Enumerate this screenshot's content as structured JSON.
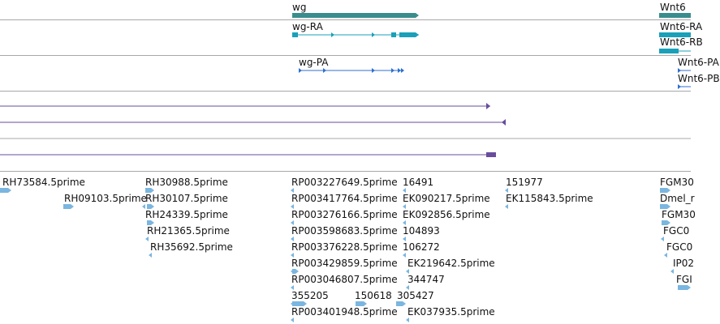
{
  "gene_track": {
    "genes": [
      {
        "label": "wg"
      },
      {
        "label": "Wnt6"
      }
    ]
  },
  "transcript_track": {
    "transcripts": [
      {
        "label": "wg-RA"
      },
      {
        "label": "Wnt6-RA"
      },
      {
        "label": "Wnt6-RB"
      }
    ]
  },
  "protein_track": {
    "proteins": [
      {
        "label": "wg-PA"
      },
      {
        "label": "Wnt6-PA"
      },
      {
        "label": "Wnt6-PB"
      }
    ]
  },
  "colors": {
    "gene": "#3a8d8d",
    "transcript": "#1aa0b8",
    "protein": "#2d6fd0",
    "long_feature": "#6a4c9c",
    "est": "#7ab6e0",
    "divider": "#a8a8a8"
  },
  "est_track": {
    "features": [
      "RH73584.5prime",
      "RH09103.5prime",
      "RH30988.5prime",
      "RH30107.5prime",
      "RH24339.5prime",
      "RH21365.5prime",
      "RH35692.5prime",
      "RP003227649.5prime",
      "RP003417764.5prime",
      "RP003276166.5prime",
      "RP003598683.5prime",
      "RP003376228.5prime",
      "RP003429859.5prime",
      "RP003046807.5prime",
      "355205",
      "150618",
      "305427",
      "RP003401948.5prime",
      "16491",
      "EK090217.5prime",
      "EK092856.5prime",
      "104893",
      "106272",
      "EK219642.5prime",
      "344747",
      "EK037935.5prime",
      "151977",
      "EK115843.5prime",
      "FGM30",
      "Dmel_r",
      "FGM30",
      "FGC0",
      "FGC0",
      "IP02",
      "FGI"
    ]
  }
}
